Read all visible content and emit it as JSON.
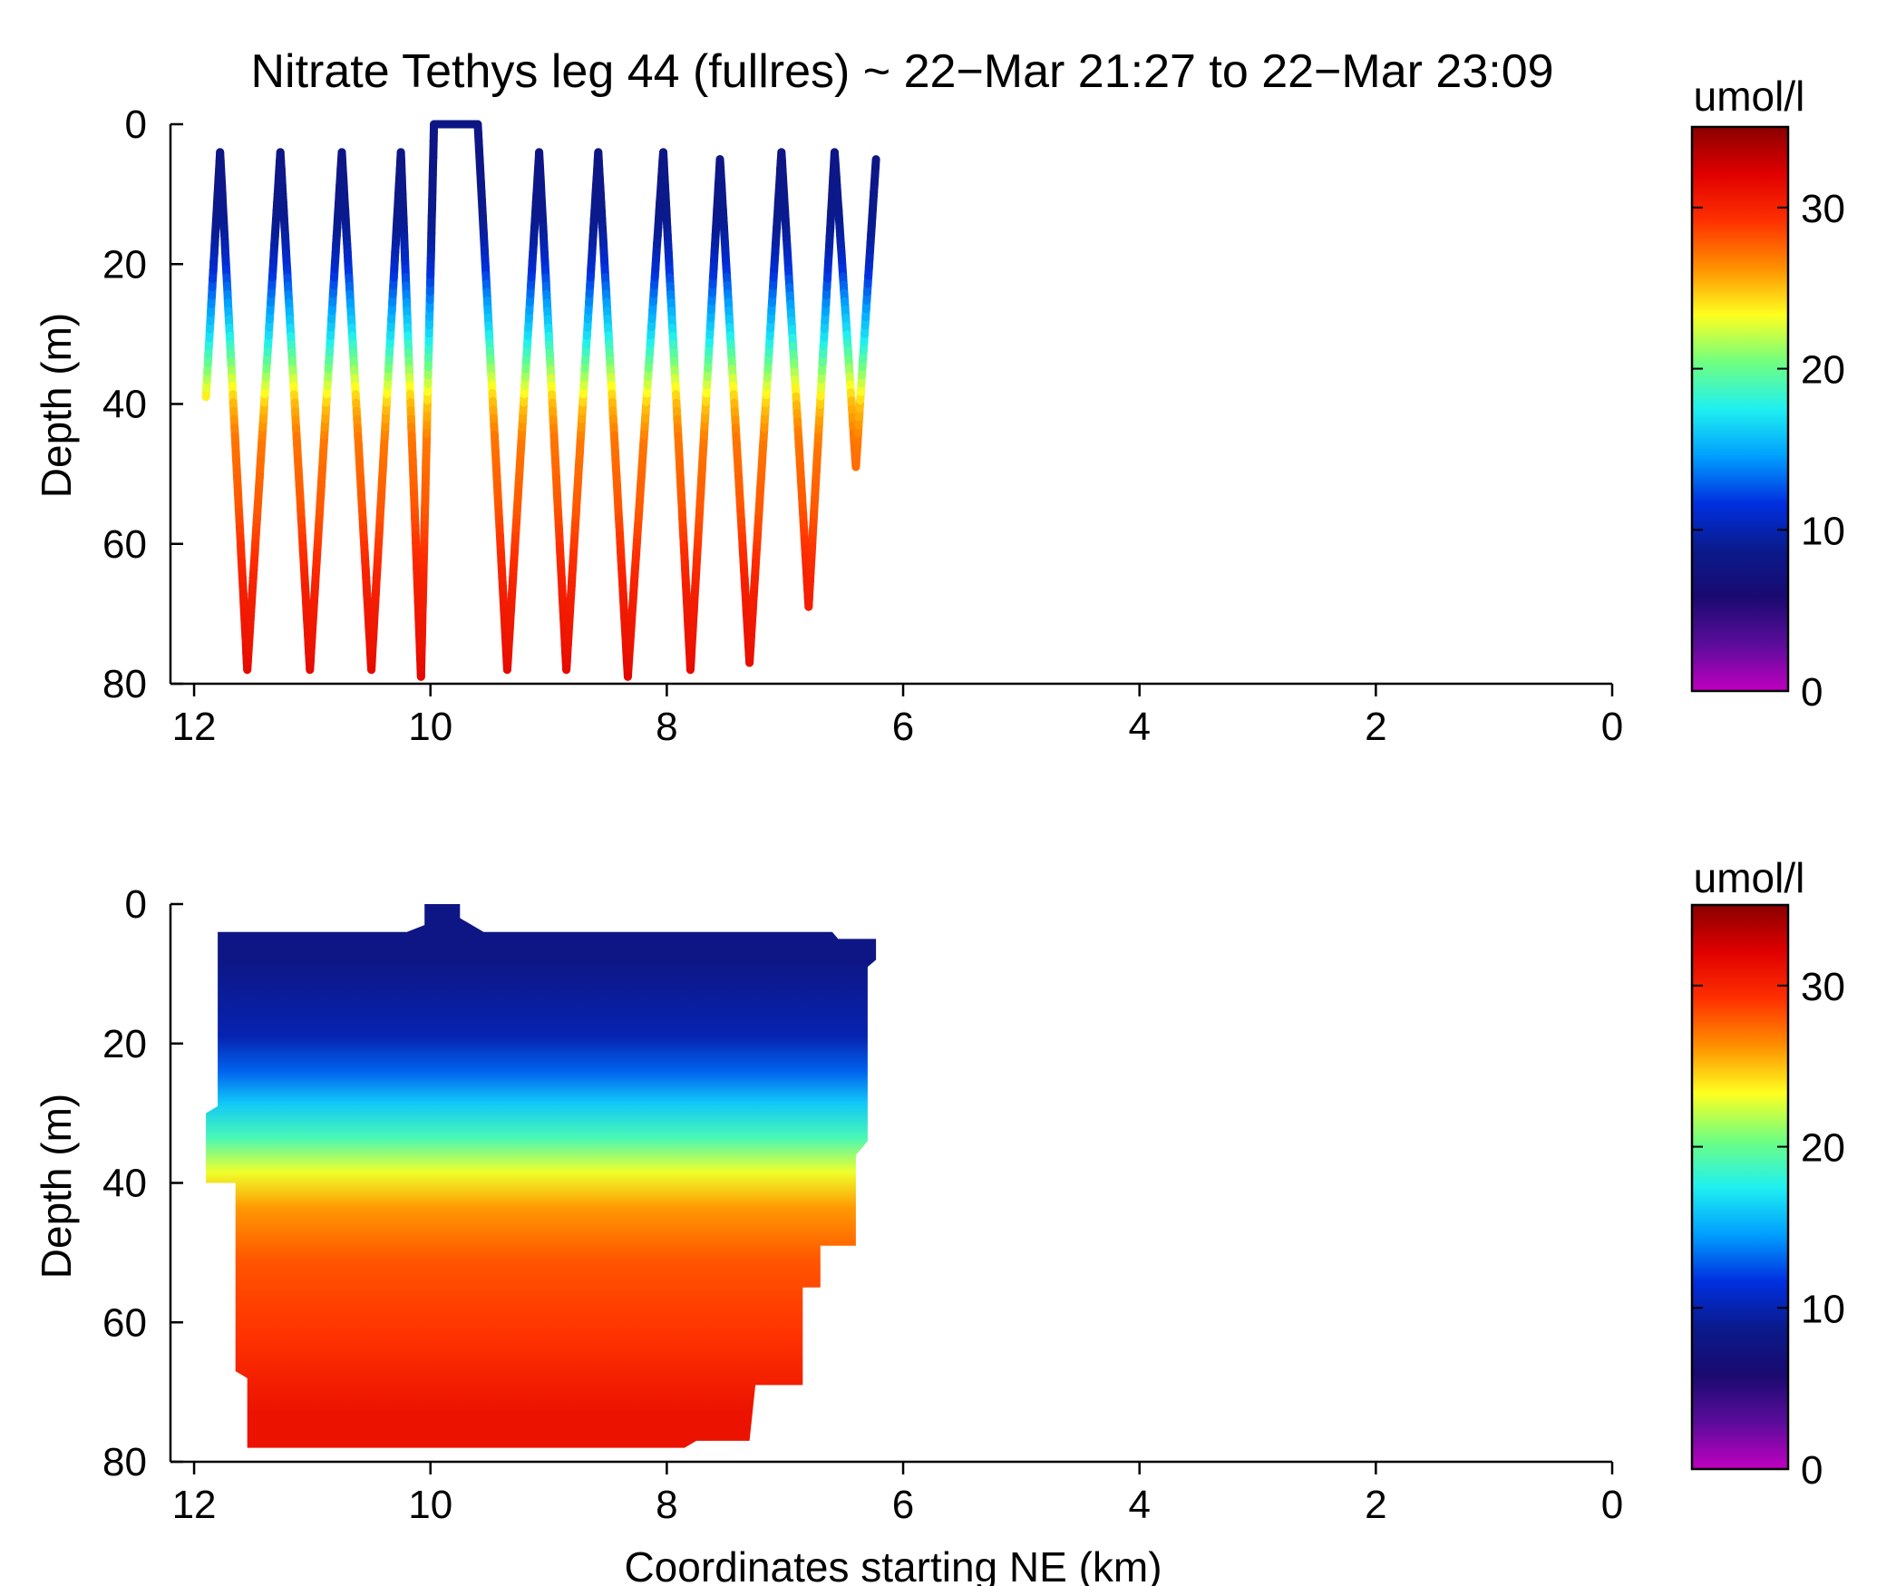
{
  "figure": {
    "title": "Nitrate Tethys leg 44 (fullres) ~ 22−Mar 21:27 to 22−Mar 23:09",
    "xlabel": "Coordinates starting NE (km)",
    "ylabel": "Depth (m)",
    "colorbar_unit": "umol/l",
    "colormap": [
      "#c000c0",
      "#5a0c9a",
      "#1a0a70",
      "#0a1a8c",
      "#0030e0",
      "#00a0ff",
      "#20f0f0",
      "#70ff80",
      "#ffff20",
      "#ff9000",
      "#ff3000",
      "#e00000",
      "#8a0000"
    ]
  },
  "chart_data": [
    {
      "type": "scatter",
      "title": "Nitrate Tethys leg 44 (fullres) ~ 22−Mar 21:27 to 22−Mar 23:09",
      "xlabel": "",
      "ylabel": "Depth (m)",
      "xlim": [
        12.2,
        0
      ],
      "ylim": [
        80,
        0
      ],
      "xticks": [
        "12",
        "10",
        "8",
        "6",
        "4",
        "2",
        "0"
      ],
      "yticks": [
        "0",
        "20",
        "40",
        "60",
        "80"
      ],
      "colorbar": {
        "label": "umol/l",
        "range": [
          0,
          35
        ],
        "ticks": [
          "0",
          "10",
          "20",
          "30"
        ]
      },
      "track_vertices": [
        {
          "x": 11.9,
          "depth": 39
        },
        {
          "x": 11.78,
          "depth": 4
        },
        {
          "x": 11.55,
          "depth": 78
        },
        {
          "x": 11.27,
          "depth": 4
        },
        {
          "x": 11.02,
          "depth": 78
        },
        {
          "x": 10.75,
          "depth": 4
        },
        {
          "x": 10.5,
          "depth": 78
        },
        {
          "x": 10.25,
          "depth": 4
        },
        {
          "x": 10.08,
          "depth": 79
        },
        {
          "x": 9.97,
          "depth": 0
        },
        {
          "x": 9.6,
          "depth": 0
        },
        {
          "x": 9.35,
          "depth": 78
        },
        {
          "x": 9.08,
          "depth": 4
        },
        {
          "x": 8.85,
          "depth": 78
        },
        {
          "x": 8.58,
          "depth": 4
        },
        {
          "x": 8.33,
          "depth": 79
        },
        {
          "x": 8.03,
          "depth": 4
        },
        {
          "x": 7.8,
          "depth": 78
        },
        {
          "x": 7.55,
          "depth": 5
        },
        {
          "x": 7.3,
          "depth": 77
        },
        {
          "x": 7.03,
          "depth": 4
        },
        {
          "x": 6.8,
          "depth": 69
        },
        {
          "x": 6.58,
          "depth": 4
        },
        {
          "x": 6.4,
          "depth": 49
        },
        {
          "x": 6.23,
          "depth": 5
        }
      ],
      "nitrate_vs_depth": [
        {
          "depth": 0,
          "nitrate": 8
        },
        {
          "depth": 5,
          "nitrate": 8
        },
        {
          "depth": 15,
          "nitrate": 9
        },
        {
          "depth": 20,
          "nitrate": 11
        },
        {
          "depth": 25,
          "nitrate": 14
        },
        {
          "depth": 30,
          "nitrate": 17
        },
        {
          "depth": 35,
          "nitrate": 21
        },
        {
          "depth": 40,
          "nitrate": 25
        },
        {
          "depth": 45,
          "nitrate": 27
        },
        {
          "depth": 55,
          "nitrate": 28
        },
        {
          "depth": 65,
          "nitrate": 30
        },
        {
          "depth": 75,
          "nitrate": 31
        },
        {
          "depth": 80,
          "nitrate": 32
        }
      ]
    },
    {
      "type": "heatmap",
      "title": "",
      "xlabel": "Coordinates starting NE (km)",
      "ylabel": "Depth (m)",
      "xlim": [
        12.2,
        0
      ],
      "ylim": [
        80,
        0
      ],
      "xticks": [
        "12",
        "10",
        "8",
        "6",
        "4",
        "2",
        "0"
      ],
      "yticks": [
        "0",
        "20",
        "40",
        "60",
        "80"
      ],
      "colorbar": {
        "label": "umol/l",
        "range": [
          0,
          35
        ],
        "ticks": [
          "0",
          "10",
          "20",
          "30"
        ]
      },
      "boundary": [
        {
          "x": 11.9,
          "depth": 40
        },
        {
          "x": 11.9,
          "depth": 30
        },
        {
          "x": 11.8,
          "depth": 29
        },
        {
          "x": 11.8,
          "depth": 4
        },
        {
          "x": 10.2,
          "depth": 4
        },
        {
          "x": 10.05,
          "depth": 3
        },
        {
          "x": 10.05,
          "depth": 0
        },
        {
          "x": 9.75,
          "depth": 0
        },
        {
          "x": 9.75,
          "depth": 2
        },
        {
          "x": 9.55,
          "depth": 4
        },
        {
          "x": 6.6,
          "depth": 4
        },
        {
          "x": 6.55,
          "depth": 5
        },
        {
          "x": 6.23,
          "depth": 5
        },
        {
          "x": 6.23,
          "depth": 8
        },
        {
          "x": 6.3,
          "depth": 9
        },
        {
          "x": 6.3,
          "depth": 34
        },
        {
          "x": 6.4,
          "depth": 36
        },
        {
          "x": 6.4,
          "depth": 49
        },
        {
          "x": 6.7,
          "depth": 49
        },
        {
          "x": 6.7,
          "depth": 55
        },
        {
          "x": 6.85,
          "depth": 55
        },
        {
          "x": 6.85,
          "depth": 69
        },
        {
          "x": 7.25,
          "depth": 69
        },
        {
          "x": 7.3,
          "depth": 77
        },
        {
          "x": 7.75,
          "depth": 77
        },
        {
          "x": 7.85,
          "depth": 78
        },
        {
          "x": 11.55,
          "depth": 78
        },
        {
          "x": 11.55,
          "depth": 68
        },
        {
          "x": 11.65,
          "depth": 67
        },
        {
          "x": 11.65,
          "depth": 40
        }
      ],
      "nitrate_bands": [
        {
          "depth_top": 0,
          "depth_bottom": 16,
          "nitrate": 8
        },
        {
          "depth_top": 16,
          "depth_bottom": 22,
          "nitrate": 10
        },
        {
          "depth_top": 22,
          "depth_bottom": 26,
          "nitrate": 13
        },
        {
          "depth_top": 26,
          "depth_bottom": 31,
          "nitrate": 16
        },
        {
          "depth_top": 31,
          "depth_bottom": 36,
          "nitrate": 19
        },
        {
          "depth_top": 36,
          "depth_bottom": 41,
          "nitrate": 23
        },
        {
          "depth_top": 41,
          "depth_bottom": 46,
          "nitrate": 26
        },
        {
          "depth_top": 46,
          "depth_bottom": 56,
          "nitrate": 28
        },
        {
          "depth_top": 56,
          "depth_bottom": 66,
          "nitrate": 29
        },
        {
          "depth_top": 66,
          "depth_bottom": 80,
          "nitrate": 31
        }
      ]
    }
  ]
}
